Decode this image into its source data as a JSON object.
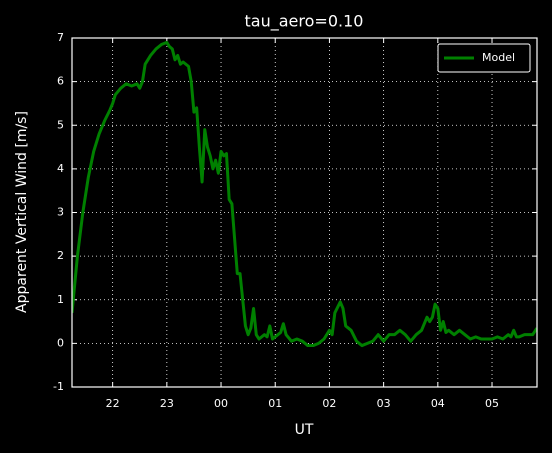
{
  "chart_data": {
    "type": "line",
    "title": "tau_aero=0.10",
    "x_label": "UT",
    "y_label": "Apparent Vertical Wind [m/s]",
    "xlim": [
      21.25,
      29.83
    ],
    "ylim": [
      -1,
      7
    ],
    "xticks": [
      22,
      23,
      {
        "value": 24,
        "label": "00"
      },
      {
        "value": 25,
        "label": "01"
      },
      {
        "value": 26,
        "label": "02"
      },
      {
        "value": 27,
        "label": "03"
      },
      {
        "value": 28,
        "label": "04"
      },
      {
        "value": 29,
        "label": "05"
      }
    ],
    "yticks": [
      -1,
      0,
      1,
      2,
      3,
      4,
      5,
      6,
      7
    ],
    "grid": true,
    "legend": "upper right",
    "series": [
      {
        "name": "Model",
        "color": "#008000",
        "x": [
          21.25,
          21.35,
          21.45,
          21.55,
          21.65,
          21.75,
          21.85,
          21.95,
          22.0,
          22.05,
          22.15,
          22.25,
          22.35,
          22.45,
          22.5,
          22.55,
          22.6,
          22.7,
          22.8,
          22.9,
          23.0,
          23.05,
          23.1,
          23.15,
          23.2,
          23.25,
          23.3,
          23.4,
          23.45,
          23.5,
          23.55,
          23.6,
          23.65,
          23.7,
          23.75,
          23.8,
          23.85,
          23.9,
          23.95,
          24.0,
          24.05,
          24.1,
          24.15,
          24.2,
          24.25,
          24.3,
          24.35,
          24.4,
          24.45,
          24.5,
          24.55,
          24.6,
          24.65,
          24.7,
          24.8,
          24.85,
          24.9,
          24.95,
          25.0,
          25.1,
          25.15,
          25.2,
          25.3,
          25.4,
          25.5,
          25.6,
          25.7,
          25.8,
          25.9,
          26.0,
          26.05,
          26.1,
          26.2,
          26.25,
          26.3,
          26.4,
          26.5,
          26.6,
          26.7,
          26.8,
          26.9,
          27.0,
          27.1,
          27.2,
          27.3,
          27.4,
          27.5,
          27.6,
          27.7,
          27.8,
          27.85,
          27.9,
          27.95,
          28.0,
          28.05,
          28.1,
          28.15,
          28.2,
          28.3,
          28.4,
          28.5,
          28.6,
          28.7,
          28.8,
          28.9,
          29.0,
          29.1,
          29.2,
          29.3,
          29.35,
          29.4,
          29.45,
          29.5,
          29.6,
          29.7,
          29.75,
          29.83
        ],
        "values": [
          0.7,
          2.0,
          3.0,
          3.8,
          4.4,
          4.8,
          5.1,
          5.35,
          5.5,
          5.7,
          5.85,
          5.95,
          5.9,
          5.95,
          5.85,
          6.0,
          6.4,
          6.6,
          6.75,
          6.85,
          6.9,
          6.8,
          6.75,
          6.5,
          6.6,
          6.4,
          6.45,
          6.35,
          6.0,
          5.3,
          5.4,
          4.5,
          3.7,
          4.9,
          4.5,
          4.3,
          4.0,
          4.2,
          3.9,
          4.4,
          4.3,
          4.35,
          3.3,
          3.2,
          2.4,
          1.6,
          1.6,
          1.0,
          0.4,
          0.2,
          0.35,
          0.8,
          0.2,
          0.1,
          0.2,
          0.15,
          0.4,
          0.1,
          0.15,
          0.25,
          0.45,
          0.2,
          0.05,
          0.1,
          0.05,
          -0.05,
          -0.05,
          0.0,
          0.1,
          0.3,
          0.2,
          0.7,
          0.95,
          0.8,
          0.4,
          0.3,
          0.05,
          -0.05,
          0.0,
          0.05,
          0.2,
          0.05,
          0.2,
          0.2,
          0.3,
          0.2,
          0.05,
          0.2,
          0.3,
          0.6,
          0.5,
          0.6,
          0.9,
          0.8,
          0.3,
          0.5,
          0.25,
          0.3,
          0.2,
          0.3,
          0.2,
          0.1,
          0.15,
          0.1,
          0.1,
          0.1,
          0.15,
          0.1,
          0.2,
          0.15,
          0.3,
          0.15,
          0.15,
          0.2,
          0.2,
          0.2,
          0.35
        ]
      }
    ]
  }
}
